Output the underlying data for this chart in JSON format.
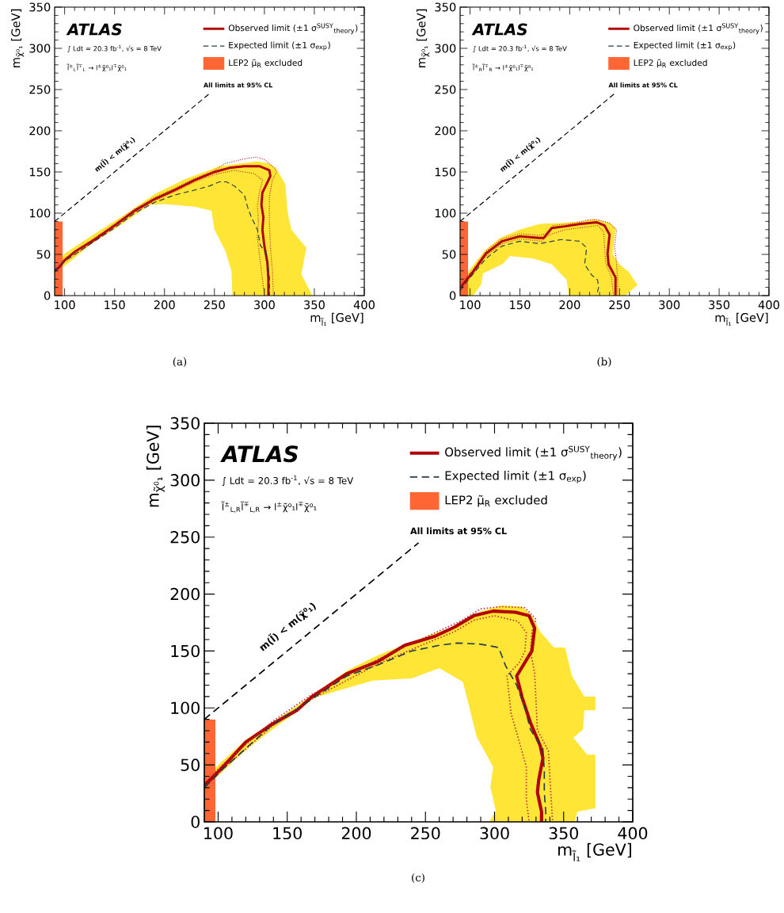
{
  "chart_data": [
    {
      "type": "line",
      "xlabel": "m$_{l̃₁}$ [GeV]",
      "ylabel": "m$_{χ̃⁰₁}$ [GeV]",
      "xlim": [
        90,
        400
      ],
      "ylim": [
        0,
        350
      ],
      "xticks": [
        100,
        150,
        200,
        250,
        300,
        350,
        400
      ],
      "yticks": [
        0,
        50,
        100,
        150,
        200,
        250,
        300,
        350
      ],
      "legend": "top right",
      "annotations": [
        "ATLAS",
        "∫ Ldt = 20.3 fb$^{-1}$, √s = 8 TeV",
        "l̃$^{±}$$_{L}$l̃$^{∓}$$_{L}$ → l$^{±}$χ̃⁰₁l$^{∓}$χ̃⁰₁",
        "All limits at 95% CL",
        "(a)",
        "m(l̃) < m(χ̃⁰₁)"
      ],
      "series": [
        {
          "name": "Observed limit (±1 σ$^{SUSY}$$_{theory}$)",
          "color": "#b00000",
          "x": [
            90,
            95,
            100,
            110,
            130,
            150,
            170,
            190,
            210,
            230,
            250,
            265,
            280,
            295,
            305,
            306,
            302,
            298,
            297,
            299,
            298,
            300,
            303,
            304,
            304
          ],
          "values": [
            30,
            35,
            43,
            53,
            68,
            85,
            103,
            117,
            128,
            140,
            150,
            155,
            157,
            157,
            152,
            145,
            135,
            125,
            110,
            95,
            80,
            60,
            40,
            20,
            0
          ]
        },
        {
          "color": "#c0283c",
          "line_style": "dotted",
          "x": [
            90,
            100,
            130,
            150,
            170,
            190,
            210,
            230,
            250,
            260,
            280,
            292,
            300,
            310,
            312,
            308,
            305,
            305,
            306,
            308,
            309
          ],
          "values": [
            32,
            45,
            70,
            87,
            105,
            119,
            130,
            142,
            152,
            160,
            166,
            168,
            165,
            155,
            150,
            140,
            120,
            90,
            60,
            30,
            0
          ]
        },
        {
          "color": "#c0283c",
          "line_style": "dotted",
          "x": [
            90,
            100,
            130,
            150,
            170,
            190,
            210,
            230,
            250,
            270,
            290,
            298,
            295,
            293,
            294,
            293,
            295,
            298,
            300
          ],
          "values": [
            28,
            41,
            66,
            83,
            101,
            115,
            126,
            138,
            147,
            152,
            148,
            140,
            125,
            110,
            90,
            70,
            50,
            20,
            0
          ]
        },
        {
          "name": "Expected limit (±1 σ$_{exp}$)",
          "color": "#2a3d4f",
          "line_style": "dashed",
          "x": [
            90,
            100,
            130,
            150,
            170,
            190,
            210,
            230,
            245,
            255,
            262,
            270,
            280,
            283,
            287,
            293,
            296,
            302,
            305,
            305
          ],
          "values": [
            30,
            42,
            66,
            82,
            100,
            113,
            122,
            128,
            133,
            138,
            138,
            133,
            122,
            108,
            95,
            80,
            61,
            51,
            22,
            0
          ]
        },
        {
          "type": "area",
          "color": "#ffe535",
          "x": [
            90,
            100,
            130,
            160,
            190,
            220,
            240,
            255,
            275,
            293,
            305,
            312,
            321,
            323,
            327,
            342,
            337,
            348,
            268,
            267,
            261,
            250,
            247,
            230,
            200,
            186,
            173,
            154,
            128,
            104,
            95,
            90
          ],
          "values": [
            36,
            51,
            75,
            98,
            123,
            141,
            150,
            157,
            160,
            163,
            160,
            154,
            135,
            103,
            80,
            58,
            26,
            0,
            0,
            30,
            54,
            80,
            103,
            108,
            111,
            110,
            100,
            84,
            64,
            40,
            null,
            27
          ]
        },
        {
          "type": "area",
          "name": "LEP2 μ̃$_{R}$ excluded",
          "color": "#ff6633",
          "x": [
            90,
            98,
            98,
            90
          ],
          "values": [
            0,
            0,
            90,
            90
          ]
        },
        {
          "color": "#000000",
          "line_style": "dashed",
          "x": [
            90,
            245
          ],
          "values": [
            90,
            245
          ]
        }
      ]
    },
    {
      "type": "line",
      "xlabel": "m$_{l̃₁}$ [GeV]",
      "ylabel": "m$_{χ̃⁰₁}$ [GeV]",
      "xlim": [
        90,
        400
      ],
      "ylim": [
        0,
        350
      ],
      "xticks": [
        100,
        150,
        200,
        250,
        300,
        350,
        400
      ],
      "yticks": [
        0,
        50,
        100,
        150,
        200,
        250,
        300,
        350
      ],
      "legend": "top right",
      "annotations": [
        "ATLAS",
        "∫ Ldt = 20.3 fb$^{-1}$, √s = 8 TeV",
        "l̃$^{±}$$_{R}$l̃$^{∓}$$_{R}$ → l$^{±}$χ̃⁰₁l$^{∓}$χ̃⁰₁",
        "All limits at 95% CL",
        "(b)",
        "m(l̃) < m(χ̃⁰₁)"
      ],
      "series": [
        {
          "name": "Observed limit (±1 σ$^{SUSY}$$_{theory}$)",
          "color": "#b00000",
          "x": [
            91,
            103,
            116,
            132,
            150,
            169,
            174,
            182,
            195,
            211,
            227,
            235,
            240,
            238,
            239,
            246,
            246
          ],
          "values": [
            11,
            29,
            51,
            66,
            72,
            70,
            70,
            82,
            84,
            87,
            89,
            85,
            74,
            51,
            38,
            22,
            0
          ]
        },
        {
          "color": "#c0283c",
          "line_style": "dotted",
          "x": [
            90,
            103,
            116,
            132,
            150,
            170,
            176,
            183,
            200,
            220,
            228,
            240,
            247,
            245,
            247,
            248,
            248
          ],
          "values": [
            14,
            32,
            54,
            69,
            75,
            73,
            75,
            85,
            87,
            92,
            92,
            88,
            80,
            60,
            40,
            20,
            0
          ]
        },
        {
          "color": "#c0283c",
          "line_style": "dotted",
          "x": [
            90,
            103,
            116,
            132,
            150,
            172,
            178,
            195,
            215,
            228,
            234,
            235,
            236,
            242,
            244
          ],
          "values": [
            8,
            26,
            48,
            63,
            69,
            66,
            73,
            80,
            83,
            85,
            78,
            60,
            40,
            22,
            0
          ]
        },
        {
          "name": "Expected limit (±1 σ$_{exp}$)",
          "color": "#2a3d4f",
          "line_style": "dashed",
          "x": [
            90,
            100,
            116,
            132,
            150,
            170,
            191,
            210,
            217,
            215,
            222,
            228,
            229,
            227
          ],
          "values": [
            6,
            22,
            45,
            60,
            66,
            63,
            68,
            66,
            58,
            38,
            25,
            19,
            10,
            0
          ]
        },
        {
          "type": "area",
          "color": "#ffe535",
          "x": [
            90,
            90,
            100,
            115,
            130,
            150,
            170,
            190,
            210,
            225,
            240,
            246,
            243,
            250,
            259,
            268,
            256,
            199,
            197,
            182,
            164,
            140,
            134,
            132,
            113,
            111,
            103
          ],
          "values": [
            0,
            14,
            32,
            55,
            70,
            80,
            87,
            88,
            90,
            93,
            88,
            82,
            51,
            38,
            29,
            13,
            0,
            0,
            19,
            38,
            45,
            48,
            40,
            38,
            27,
            13,
            0
          ]
        },
        {
          "type": "area",
          "name": "LEP2 μ̃$_{R}$ excluded",
          "color": "#ff6633",
          "x": [
            90,
            98,
            98,
            90
          ],
          "values": [
            0,
            0,
            90,
            90
          ]
        },
        {
          "color": "#000000",
          "line_style": "dashed",
          "x": [
            90,
            245
          ],
          "values": [
            90,
            245
          ]
        }
      ]
    },
    {
      "type": "line",
      "xlabel": "m$_{l̃₁}$ [GeV]",
      "ylabel": "m$_{χ̃⁰₁}$ [GeV]",
      "xlim": [
        90,
        400
      ],
      "ylim": [
        0,
        350
      ],
      "xticks": [
        100,
        150,
        200,
        250,
        300,
        350,
        400
      ],
      "yticks": [
        0,
        50,
        100,
        150,
        200,
        250,
        300,
        350
      ],
      "legend": "top right",
      "annotations": [
        "ATLAS",
        "∫ Ldt = 20.3 fb$^{-1}$, √s = 8 TeV",
        "l̃$^{±}$$_{L,R}$l̃$^{∓}$$_{L,R}$ → l$^{±}$χ̃⁰₁l$^{∓}$χ̃⁰₁",
        "All limits at 95% CL",
        "(c)",
        "m(l̃) < m(χ̃⁰₁)"
      ],
      "series": [
        {
          "name": "Observed limit (±1 σ$^{SUSY}$$_{theory}$)",
          "color": "#b00000",
          "x": [
            90,
            96,
            104,
            120,
            138,
            157,
            168,
            193,
            216,
            235,
            257,
            271,
            285,
            299,
            315,
            325,
            329,
            327,
            321,
            316,
            320,
            326,
            333,
            335,
            332,
            331,
            334,
            334
          ],
          "values": [
            32,
            39,
            49,
            70,
            85,
            98,
            110,
            130,
            141,
            155,
            163,
            171,
            181,
            185,
            184,
            181,
            170,
            150,
            138,
            128,
            109,
            87,
            67,
            56,
            37,
            26,
            9,
            0
          ]
        },
        {
          "color": "#c0283c",
          "line_style": "dotted",
          "x": [
            90,
            104,
            138,
            168,
            216,
            257,
            275,
            290,
            305,
            322,
            330,
            327,
            326,
            329,
            331,
            339,
            340,
            342
          ],
          "values": [
            34,
            51,
            87,
            112,
            143,
            166,
            176,
            187,
            189,
            188,
            178,
            167,
            150,
            131,
            81,
            62,
            40,
            0
          ]
        },
        {
          "color": "#c0283c",
          "line_style": "dotted",
          "x": [
            90,
            104,
            138,
            168,
            216,
            257,
            271,
            285,
            300,
            317,
            323,
            322,
            318,
            309,
            312,
            318,
            323,
            323,
            325
          ],
          "values": [
            30,
            47,
            83,
            108,
            139,
            160,
            167,
            177,
            181,
            176,
            166,
            150,
            140,
            128,
            95,
            70,
            48,
            20,
            0
          ]
        },
        {
          "name": "Expected limit (±1 σ$_{exp}$)",
          "color": "#2a3d4f",
          "line_style": "dashed",
          "x": [
            90,
            104,
            138,
            168,
            193,
            216,
            240,
            260,
            273,
            290,
            303,
            308,
            316,
            322,
            326,
            335,
            336,
            336,
            337,
            337
          ],
          "values": [
            30,
            47,
            84,
            108,
            128,
            138,
            150,
            155,
            157,
            156,
            153,
            137,
            120,
            100,
            81,
            64,
            45,
            26,
            10,
            0
          ]
        },
        {
          "type": "area",
          "color": "#ffe535",
          "x": [
            90,
            100,
            120,
            150,
            170,
            195,
            215,
            240,
            260,
            275,
            290,
            305,
            320,
            327,
            333,
            343,
            351,
            356,
            365,
            373,
            373,
            365,
            364,
            357,
            367,
            373,
            373,
            360,
            358,
            296,
            301,
            297,
            299,
            287,
            280,
            277,
            260,
            240,
            212,
            189,
            170,
            155,
            138,
            120,
            104,
            95,
            90
          ],
          "values": [
            35,
            50,
            72,
            96,
            113,
            134,
            146,
            158,
            167,
            173,
            185,
            190,
            189,
            181,
            167,
            153,
            153,
            128,
            110,
            110,
            98,
            98,
            81,
            74,
            59,
            59,
            12,
            9,
            0,
            0,
            9,
            31,
            48,
            75,
            109,
            123,
            135,
            126,
            124,
            116,
            109,
            95,
            80,
            63,
            45,
            null,
            29
          ]
        },
        {
          "type": "area",
          "name": "LEP2 μ̃$_{R}$ excluded",
          "color": "#ff6633",
          "x": [
            90,
            98,
            98,
            90
          ],
          "values": [
            0,
            0,
            90,
            90
          ]
        },
        {
          "color": "#000000",
          "line_style": "dashed",
          "x": [
            90,
            245
          ],
          "values": [
            90,
            245
          ]
        }
      ]
    }
  ]
}
